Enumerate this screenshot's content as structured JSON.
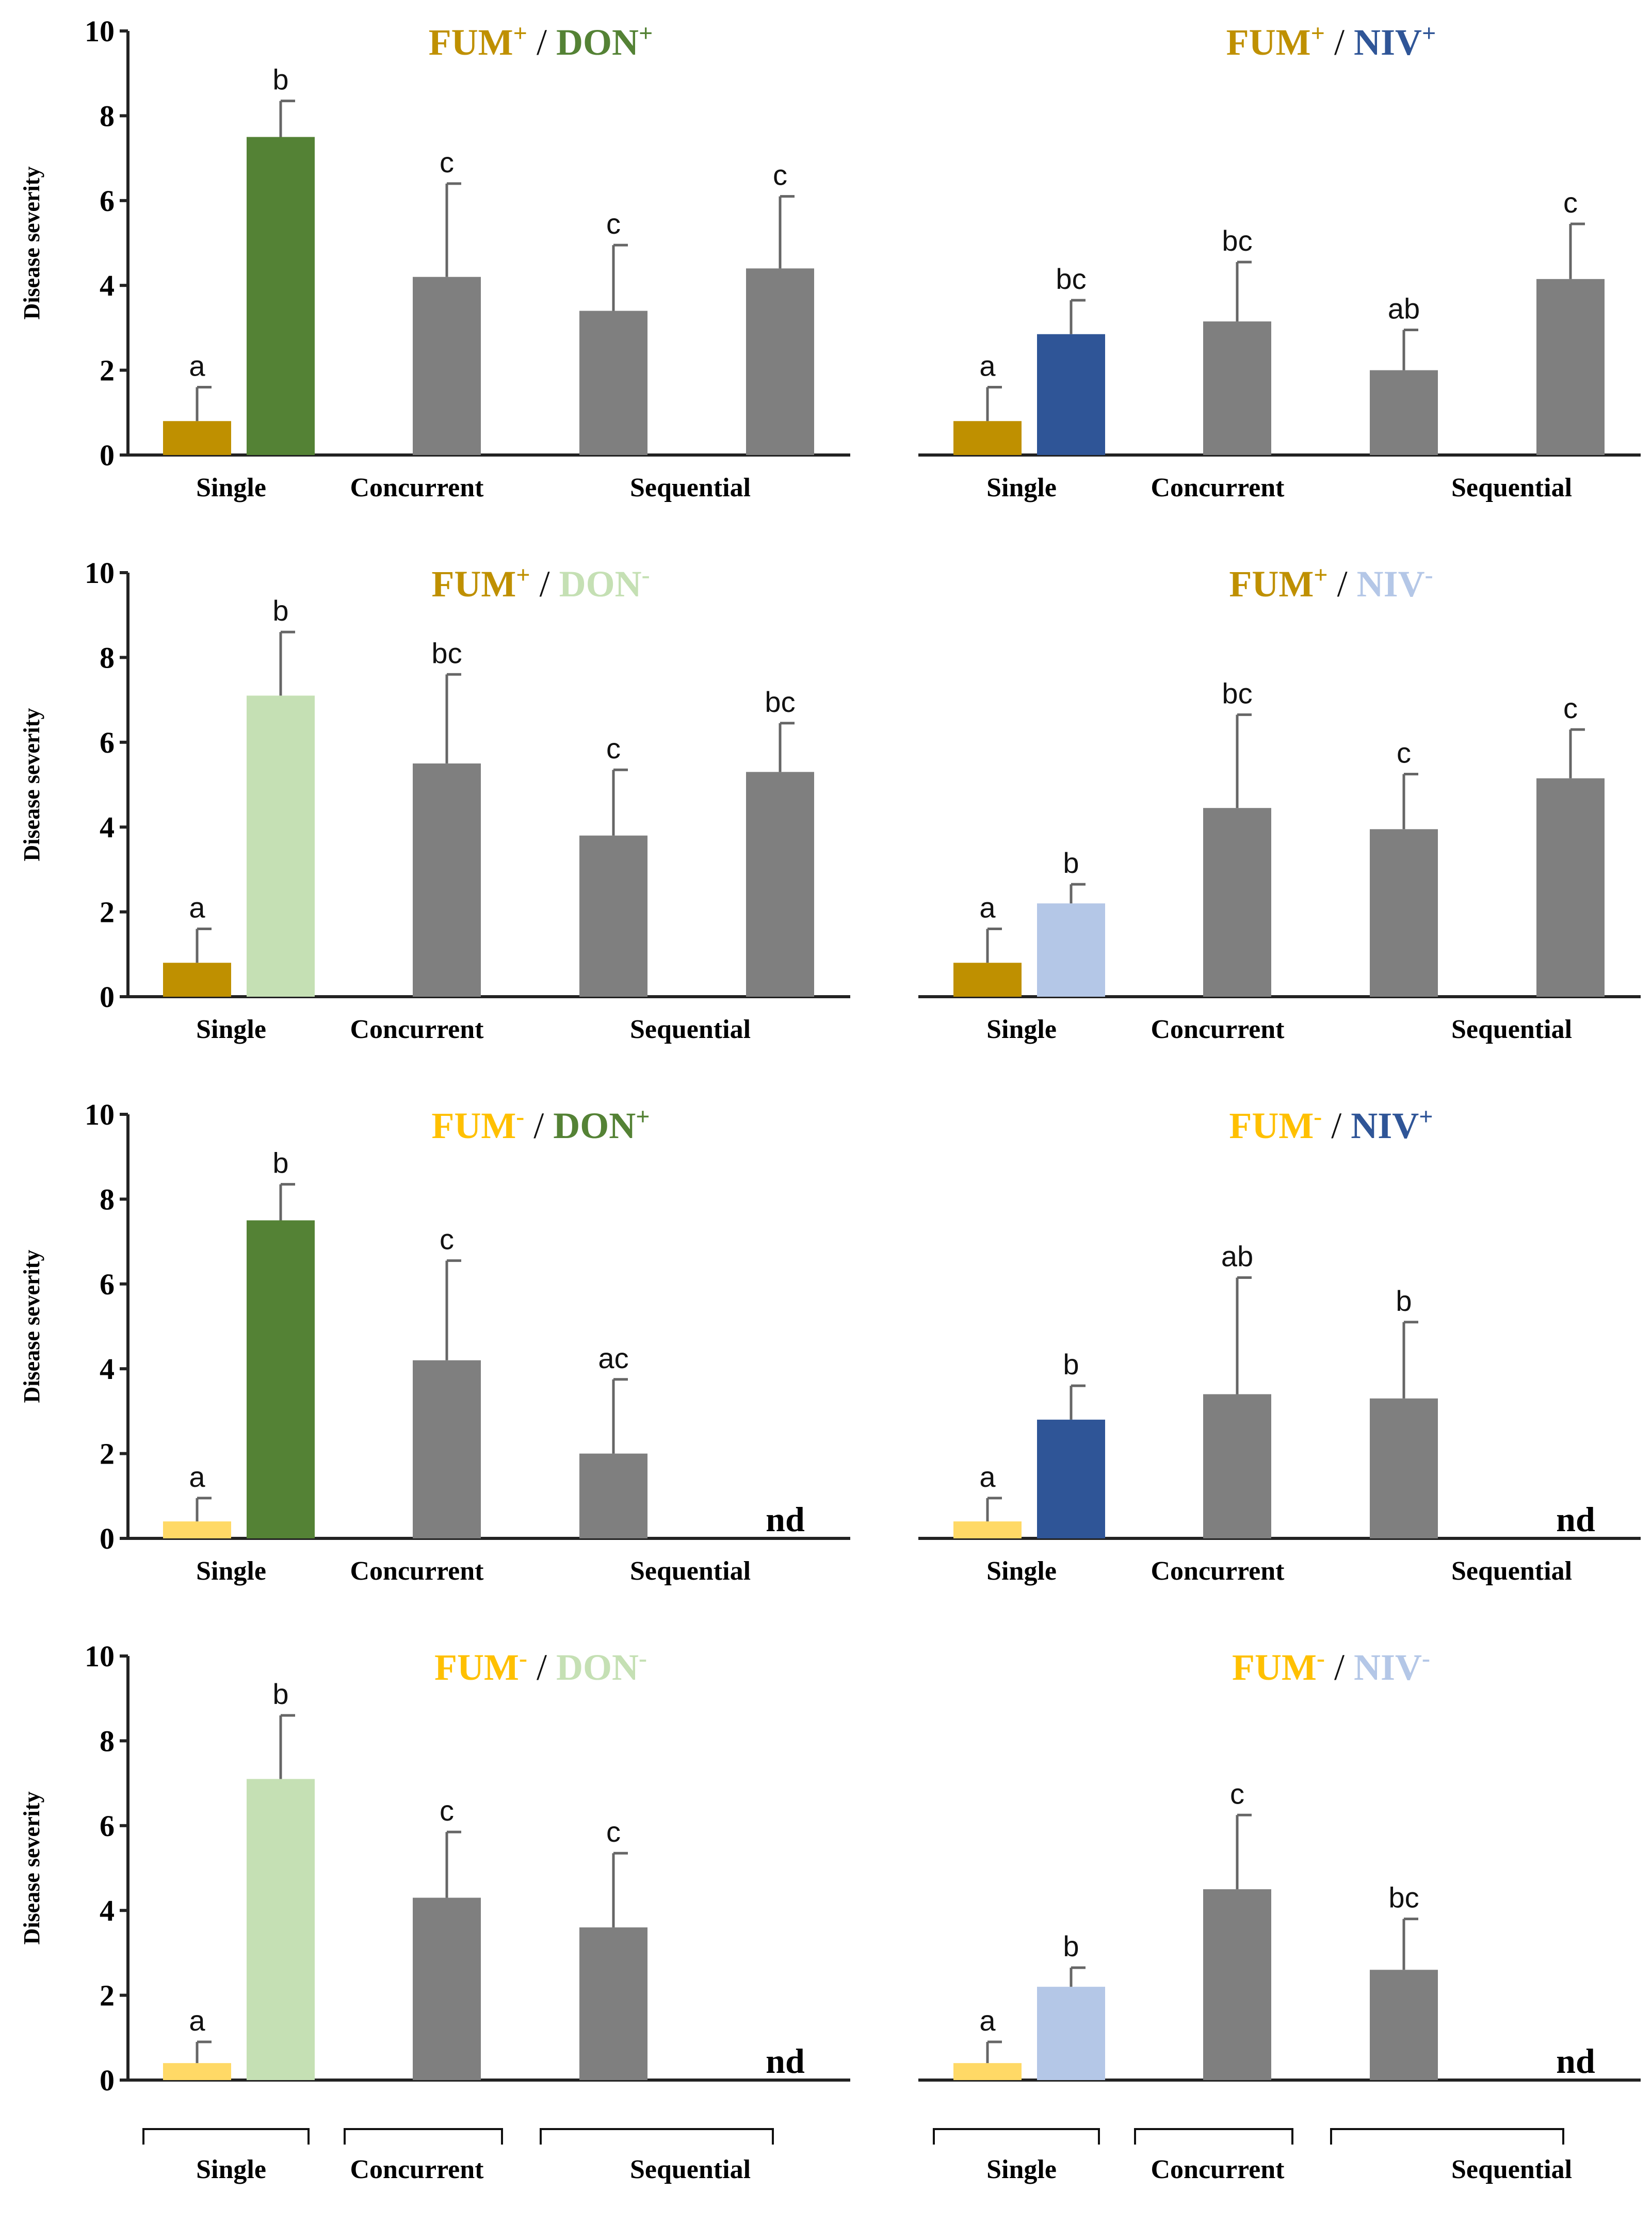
{
  "colors": {
    "fum_plus": "#bf9000",
    "fum_minus": "#ffd966",
    "don_plus": "#548235",
    "don_minus": "#c5e0b4",
    "niv_plus": "#2f5597",
    "niv_minus": "#b4c7e7",
    "combo": "#7f7f7f"
  },
  "chart_data": [
    {
      "type": "bar",
      "title": "FUM+ / DON+",
      "title_parts": [
        {
          "text": "FUM",
          "sup": "+",
          "color": "#bf9000"
        },
        {
          "text": "DON",
          "sup": "+",
          "color": "#548235"
        }
      ],
      "ylabel": "Disease severity",
      "ylim": [
        0,
        10
      ],
      "yticks": [
        0,
        2,
        4,
        6,
        8,
        10
      ],
      "groups": [
        "Single",
        "Concurrent",
        "Sequential"
      ],
      "bars": [
        {
          "group": "Single",
          "value": 0.8,
          "error": 0.8,
          "label": "a",
          "color": "#bf9000"
        },
        {
          "group": "Single",
          "value": 7.5,
          "error": 0.85,
          "label": "b",
          "color": "#548235"
        },
        {
          "group": "Concurrent",
          "value": 4.2,
          "error": 2.2,
          "label": "c",
          "color": "#7f7f7f"
        },
        {
          "group": "Sequential",
          "value": 3.4,
          "error": 1.55,
          "label": "c",
          "color": "#7f7f7f"
        },
        {
          "group": "Sequential",
          "value": 4.4,
          "error": 1.7,
          "label": "c",
          "color": "#7f7f7f"
        }
      ]
    },
    {
      "type": "bar",
      "title": "FUM+ / NIV+",
      "title_parts": [
        {
          "text": "FUM",
          "sup": "+",
          "color": "#bf9000"
        },
        {
          "text": "NIV",
          "sup": "+",
          "color": "#2f5597"
        }
      ],
      "ylabel": "",
      "ylim": [
        0,
        10
      ],
      "yticks": [],
      "groups": [
        "Single",
        "Concurrent",
        "Sequential"
      ],
      "bars": [
        {
          "group": "Single",
          "value": 0.8,
          "error": 0.8,
          "label": "a",
          "color": "#bf9000"
        },
        {
          "group": "Single",
          "value": 2.85,
          "error": 0.8,
          "label": "bc",
          "color": "#2f5597"
        },
        {
          "group": "Concurrent",
          "value": 3.15,
          "error": 1.4,
          "label": "bc",
          "color": "#7f7f7f"
        },
        {
          "group": "Sequential",
          "value": 2.0,
          "error": 0.95,
          "label": "ab",
          "color": "#7f7f7f"
        },
        {
          "group": "Sequential",
          "value": 4.15,
          "error": 1.3,
          "label": "c",
          "color": "#7f7f7f"
        }
      ]
    },
    {
      "type": "bar",
      "title": "FUM+ / DON-",
      "title_parts": [
        {
          "text": "FUM",
          "sup": "+",
          "color": "#bf9000"
        },
        {
          "text": "DON",
          "sup": "-",
          "color": "#c5e0b4"
        }
      ],
      "ylabel": "Disease severity",
      "ylim": [
        0,
        10
      ],
      "yticks": [
        0,
        2,
        4,
        6,
        8,
        10
      ],
      "groups": [
        "Single",
        "Concurrent",
        "Sequential"
      ],
      "bars": [
        {
          "group": "Single",
          "value": 0.8,
          "error": 0.8,
          "label": "a",
          "color": "#bf9000"
        },
        {
          "group": "Single",
          "value": 7.1,
          "error": 1.5,
          "label": "b",
          "color": "#c5e0b4"
        },
        {
          "group": "Concurrent",
          "value": 5.5,
          "error": 2.1,
          "label": "bc",
          "color": "#7f7f7f"
        },
        {
          "group": "Sequential",
          "value": 3.8,
          "error": 1.55,
          "label": "c",
          "color": "#7f7f7f"
        },
        {
          "group": "Sequential",
          "value": 5.3,
          "error": 1.15,
          "label": "bc",
          "color": "#7f7f7f"
        }
      ]
    },
    {
      "type": "bar",
      "title": "FUM+ / NIV-",
      "title_parts": [
        {
          "text": "FUM",
          "sup": "+",
          "color": "#bf9000"
        },
        {
          "text": "NIV",
          "sup": "-",
          "color": "#b4c7e7"
        }
      ],
      "ylabel": "",
      "ylim": [
        0,
        10
      ],
      "yticks": [],
      "groups": [
        "Single",
        "Concurrent",
        "Sequential"
      ],
      "bars": [
        {
          "group": "Single",
          "value": 0.8,
          "error": 0.8,
          "label": "a",
          "color": "#bf9000"
        },
        {
          "group": "Single",
          "value": 2.2,
          "error": 0.45,
          "label": "b",
          "color": "#b4c7e7"
        },
        {
          "group": "Concurrent",
          "value": 4.45,
          "error": 2.2,
          "label": "bc",
          "color": "#7f7f7f"
        },
        {
          "group": "Sequential",
          "value": 3.95,
          "error": 1.3,
          "label": "c",
          "color": "#7f7f7f"
        },
        {
          "group": "Sequential",
          "value": 5.15,
          "error": 1.15,
          "label": "c",
          "color": "#7f7f7f"
        }
      ]
    },
    {
      "type": "bar",
      "title": "FUM- / DON+",
      "title_parts": [
        {
          "text": "FUM",
          "sup": "-",
          "color": "#ffc000"
        },
        {
          "text": "DON",
          "sup": "+",
          "color": "#548235"
        }
      ],
      "ylabel": "Disease severity",
      "ylim": [
        0,
        10
      ],
      "yticks": [
        0,
        2,
        4,
        6,
        8,
        10
      ],
      "groups": [
        "Single",
        "Concurrent",
        "Sequential"
      ],
      "bars": [
        {
          "group": "Single",
          "value": 0.4,
          "error": 0.55,
          "label": "a",
          "color": "#ffd966"
        },
        {
          "group": "Single",
          "value": 7.5,
          "error": 0.85,
          "label": "b",
          "color": "#548235"
        },
        {
          "group": "Concurrent",
          "value": 4.2,
          "error": 2.35,
          "label": "c",
          "color": "#7f7f7f"
        },
        {
          "group": "Sequential",
          "value": 2.0,
          "error": 1.75,
          "label": "ac",
          "color": "#7f7f7f"
        },
        {
          "group": "Sequential",
          "value": null,
          "error": null,
          "label": "nd",
          "color": "#7f7f7f"
        }
      ]
    },
    {
      "type": "bar",
      "title": "FUM- / NIV+",
      "title_parts": [
        {
          "text": "FUM",
          "sup": "-",
          "color": "#ffc000"
        },
        {
          "text": "NIV",
          "sup": "+",
          "color": "#2f5597"
        }
      ],
      "ylabel": "",
      "ylim": [
        0,
        10
      ],
      "yticks": [],
      "groups": [
        "Single",
        "Concurrent",
        "Sequential"
      ],
      "bars": [
        {
          "group": "Single",
          "value": 0.4,
          "error": 0.55,
          "label": "a",
          "color": "#ffd966"
        },
        {
          "group": "Single",
          "value": 2.8,
          "error": 0.8,
          "label": "b",
          "color": "#2f5597"
        },
        {
          "group": "Concurrent",
          "value": 3.4,
          "error": 2.75,
          "label": "ab",
          "color": "#7f7f7f"
        },
        {
          "group": "Sequential",
          "value": 3.3,
          "error": 1.8,
          "label": "b",
          "color": "#7f7f7f"
        },
        {
          "group": "Sequential",
          "value": null,
          "error": null,
          "label": "nd",
          "color": "#7f7f7f"
        }
      ]
    },
    {
      "type": "bar",
      "title": "FUM- / DON-",
      "title_parts": [
        {
          "text": "FUM",
          "sup": "-",
          "color": "#ffc000"
        },
        {
          "text": "DON",
          "sup": "-",
          "color": "#c5e0b4"
        }
      ],
      "ylabel": "Disease severity",
      "ylim": [
        0,
        10
      ],
      "yticks": [
        0,
        2,
        4,
        6,
        8,
        10
      ],
      "groups": [
        "Single",
        "Concurrent",
        "Sequential"
      ],
      "bars": [
        {
          "group": "Single",
          "value": 0.4,
          "error": 0.5,
          "label": "a",
          "color": "#ffd966"
        },
        {
          "group": "Single",
          "value": 7.1,
          "error": 1.5,
          "label": "b",
          "color": "#c5e0b4"
        },
        {
          "group": "Concurrent",
          "value": 4.3,
          "error": 1.55,
          "label": "c",
          "color": "#7f7f7f"
        },
        {
          "group": "Sequential",
          "value": 3.6,
          "error": 1.75,
          "label": "c",
          "color": "#7f7f7f"
        },
        {
          "group": "Sequential",
          "value": null,
          "error": null,
          "label": "nd",
          "color": "#7f7f7f"
        }
      ]
    },
    {
      "type": "bar",
      "title": "FUM- / NIV-",
      "title_parts": [
        {
          "text": "FUM",
          "sup": "-",
          "color": "#ffc000"
        },
        {
          "text": "NIV",
          "sup": "-",
          "color": "#b4c7e7"
        }
      ],
      "ylabel": "",
      "ylim": [
        0,
        10
      ],
      "yticks": [],
      "groups": [
        "Single",
        "Concurrent",
        "Sequential"
      ],
      "bars": [
        {
          "group": "Single",
          "value": 0.4,
          "error": 0.5,
          "label": "a",
          "color": "#ffd966"
        },
        {
          "group": "Single",
          "value": 2.2,
          "error": 0.45,
          "label": "b",
          "color": "#b4c7e7"
        },
        {
          "group": "Concurrent",
          "value": 4.5,
          "error": 1.75,
          "label": "c",
          "color": "#7f7f7f"
        },
        {
          "group": "Sequential",
          "value": 2.6,
          "error": 1.2,
          "label": "bc",
          "color": "#7f7f7f"
        },
        {
          "group": "Sequential",
          "value": null,
          "error": null,
          "label": "nd",
          "color": "#7f7f7f"
        }
      ]
    }
  ]
}
